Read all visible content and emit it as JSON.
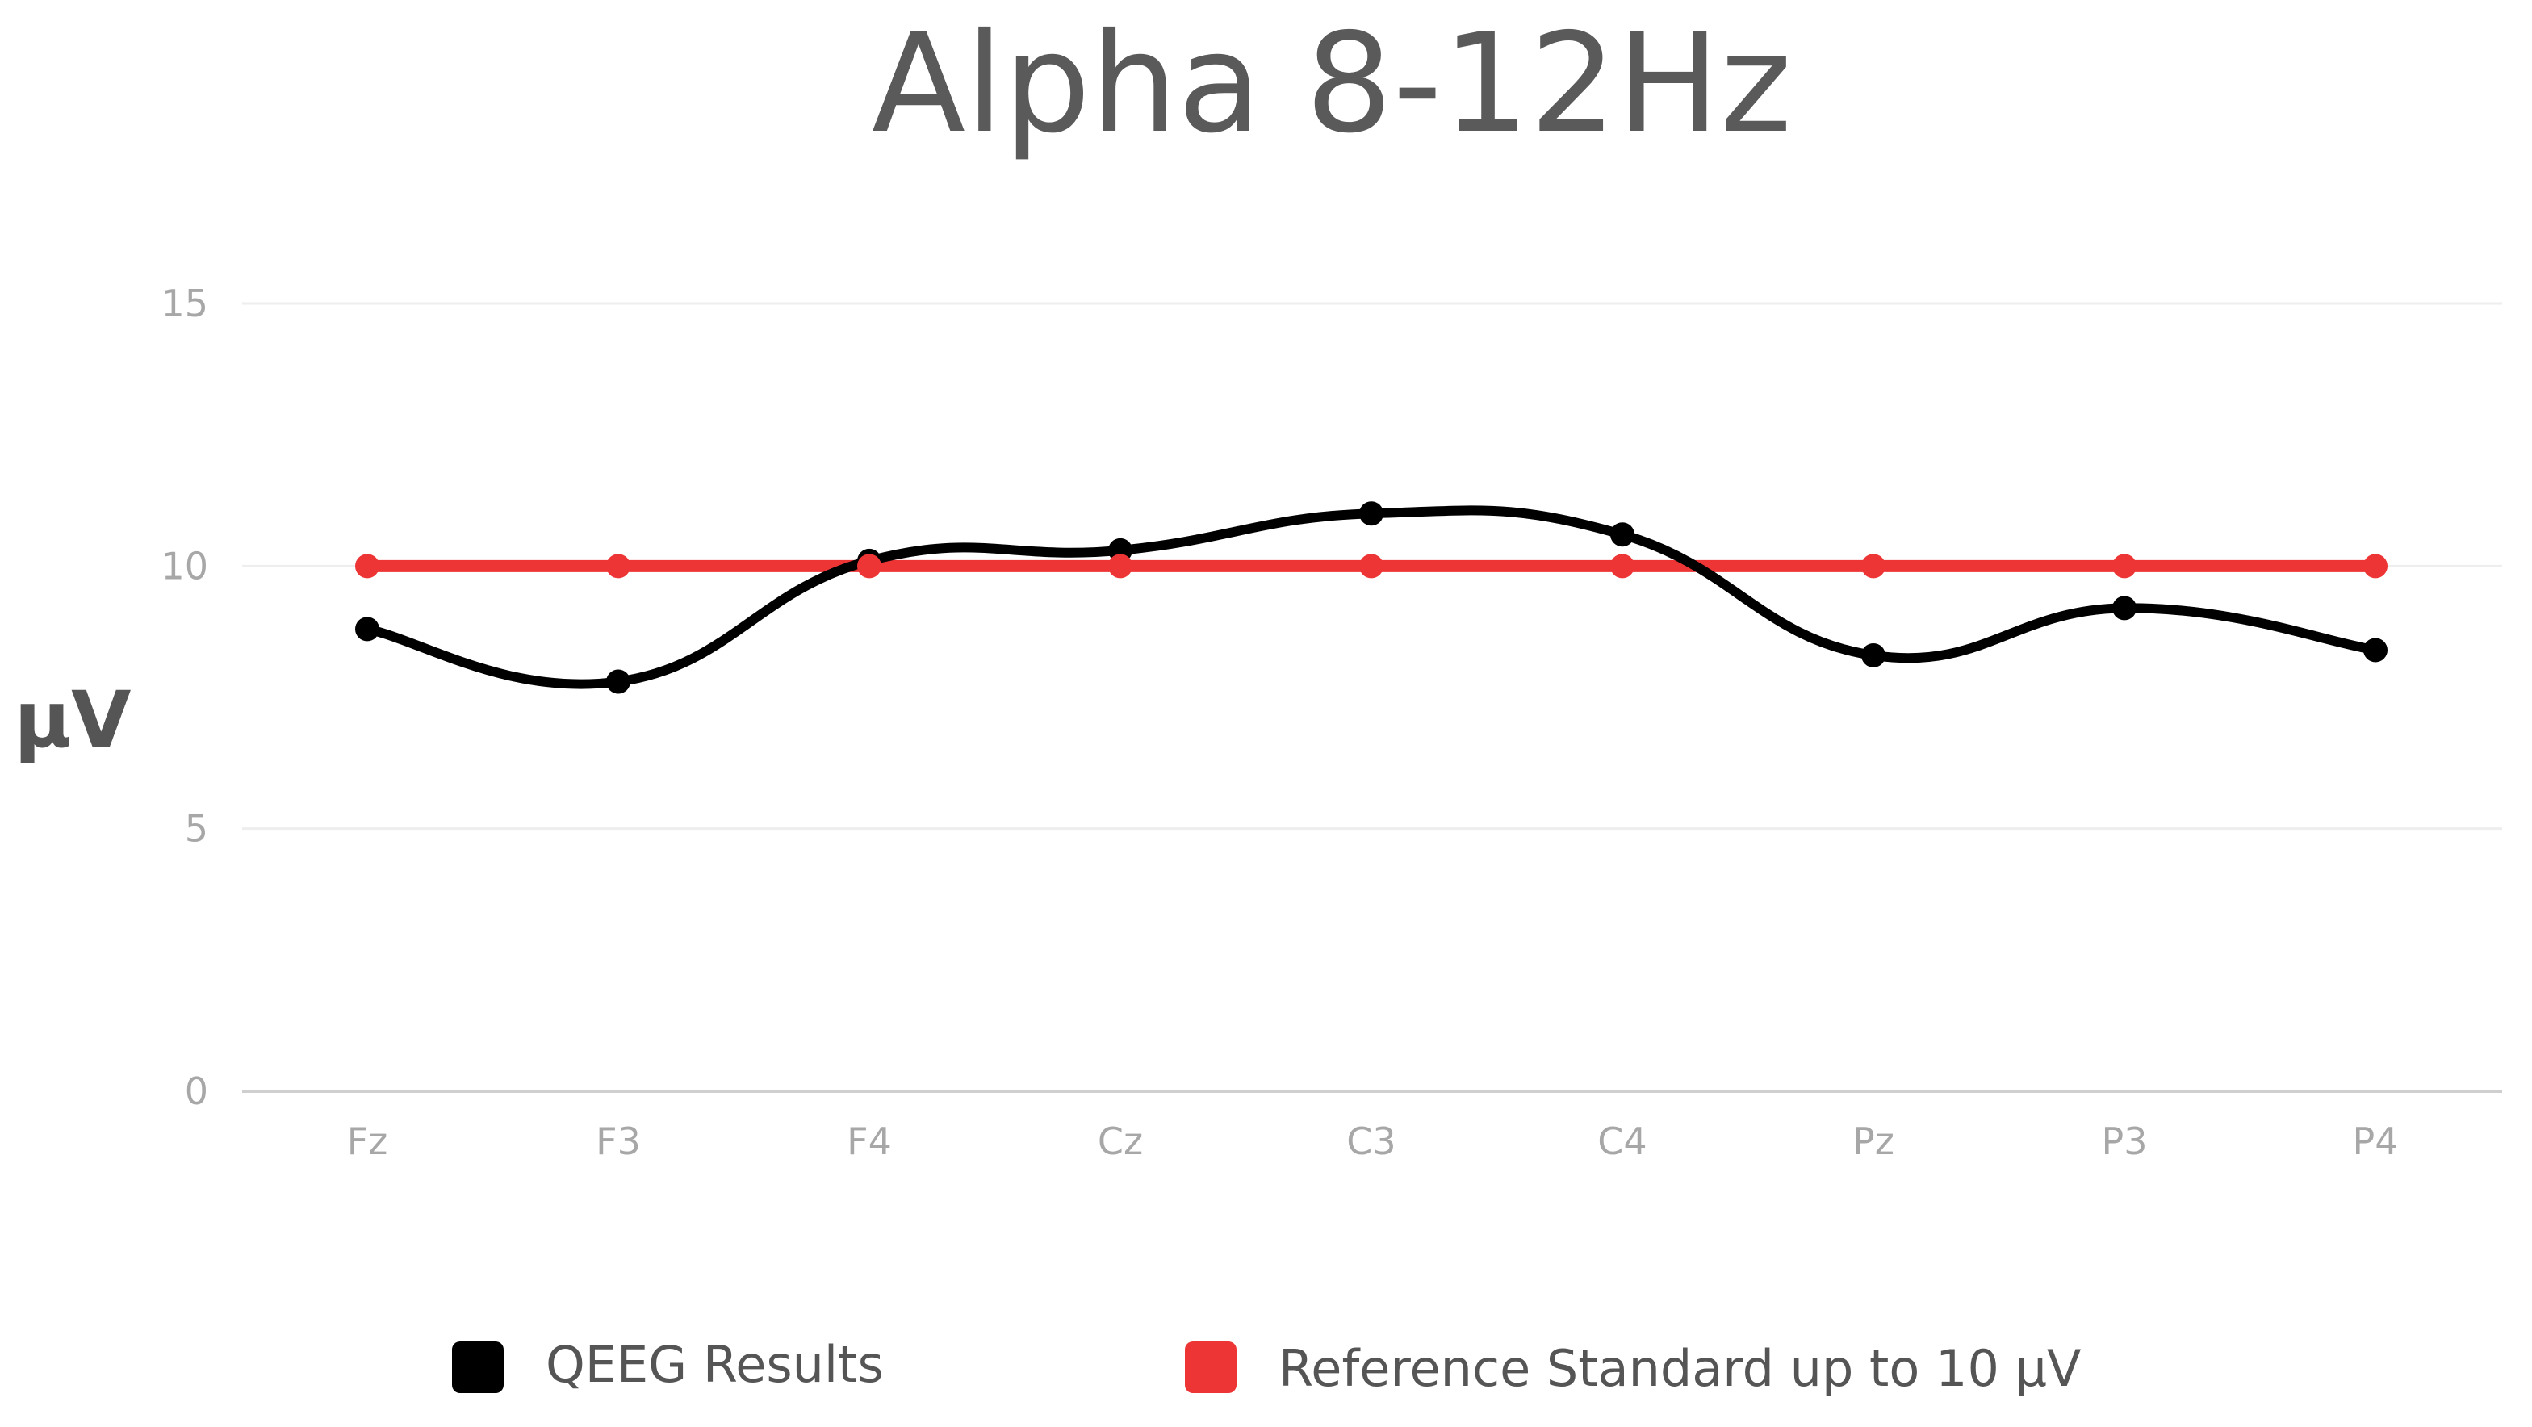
{
  "chart_data": {
    "type": "line",
    "title": "Alpha 8-12Hz",
    "ylabel": "μV",
    "xlabel": "",
    "categories": [
      "Fz",
      "F3",
      "F4",
      "Cz",
      "C3",
      "C4",
      "Pz",
      "P3",
      "P4"
    ],
    "yticks": [
      0,
      5,
      10,
      15
    ],
    "ylim": [
      0,
      15
    ],
    "grid": true,
    "legend_position": "bottom",
    "series": [
      {
        "name": "QEEG Results",
        "color": "#000000",
        "values": [
          8.8,
          7.8,
          10.1,
          10.3,
          11.0,
          10.6,
          8.3,
          9.2,
          8.4
        ]
      },
      {
        "name": "Reference Standard up to 10 μV",
        "color": "#ee3535",
        "values": [
          10,
          10,
          10,
          10,
          10,
          10,
          10,
          10,
          10
        ]
      }
    ]
  }
}
